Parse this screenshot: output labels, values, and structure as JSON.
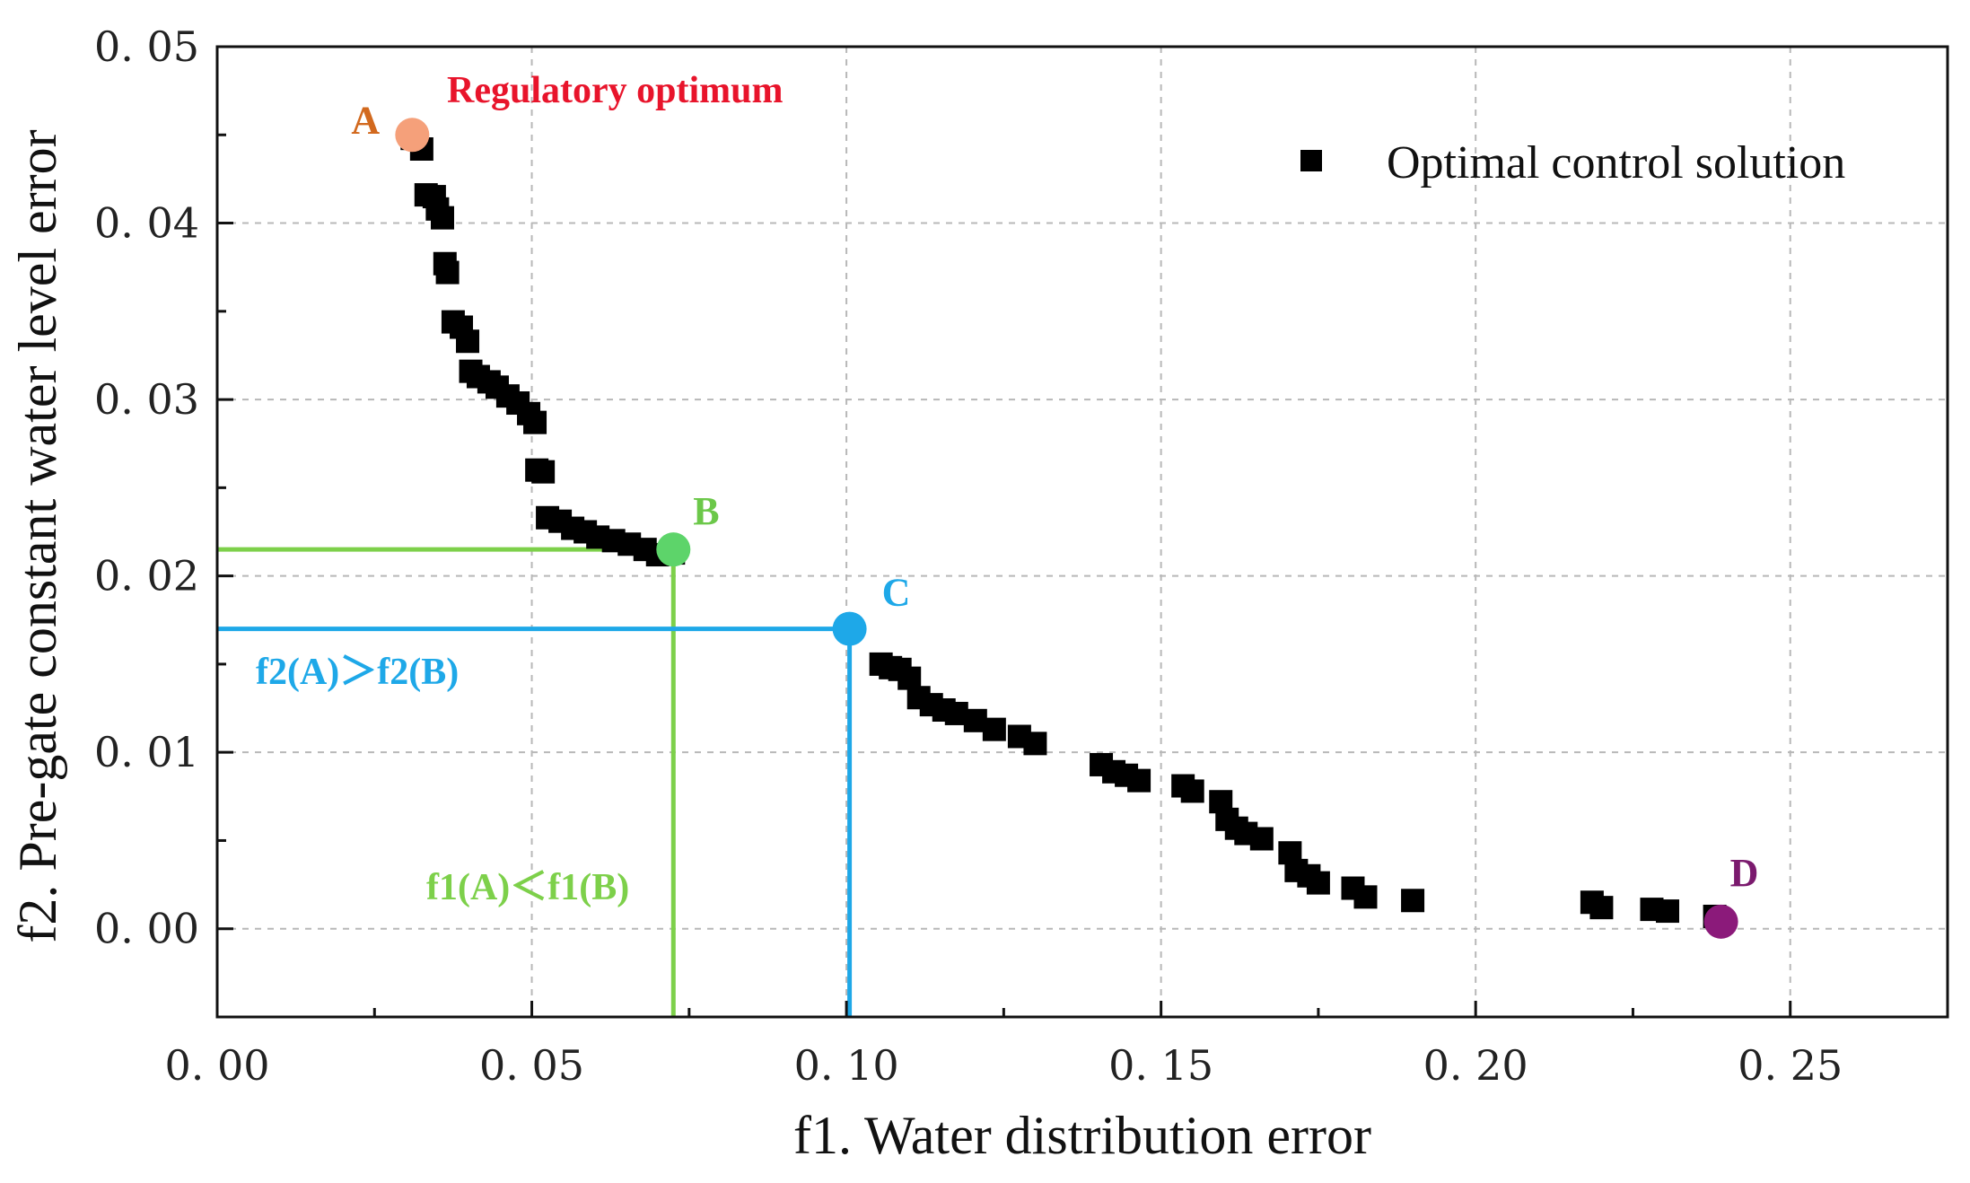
{
  "chart_data": {
    "type": "scatter",
    "xlabel": "f1. Water distribution error",
    "ylabel": "f2. Pre-gate constant water level error",
    "xlim": [
      0.0,
      0.275
    ],
    "ylim": [
      -0.005,
      0.05
    ],
    "x_ticks": [
      0.0,
      0.05,
      0.1,
      0.15,
      0.2,
      0.25
    ],
    "x_tick_labels": [
      "0. 00",
      "0. 05",
      "0. 10",
      "0. 15",
      "0. 20",
      "0. 25"
    ],
    "y_ticks": [
      0.0,
      0.01,
      0.02,
      0.03,
      0.04,
      0.05
    ],
    "y_tick_labels": [
      "0. 00",
      "0. 01",
      "0. 02",
      "0. 03",
      "0. 04",
      "0. 05"
    ],
    "grid": true,
    "legend": {
      "position": "top-right",
      "entries": [
        "Optimal control solution"
      ]
    },
    "series": [
      {
        "name": "Optimal control solution",
        "marker": "square",
        "color": "#000000",
        "points": [
          [
            0.031,
            0.0448
          ],
          [
            0.0325,
            0.0442
          ],
          [
            0.0332,
            0.0416
          ],
          [
            0.0345,
            0.0415
          ],
          [
            0.035,
            0.0408
          ],
          [
            0.0358,
            0.0403
          ],
          [
            0.0362,
            0.0377
          ],
          [
            0.0366,
            0.0372
          ],
          [
            0.0375,
            0.0344
          ],
          [
            0.0388,
            0.0341
          ],
          [
            0.0398,
            0.0333
          ],
          [
            0.0403,
            0.0316
          ],
          [
            0.0415,
            0.0313
          ],
          [
            0.0432,
            0.031
          ],
          [
            0.0445,
            0.0307
          ],
          [
            0.0462,
            0.0302
          ],
          [
            0.0478,
            0.0298
          ],
          [
            0.0495,
            0.0292
          ],
          [
            0.0505,
            0.0287
          ],
          [
            0.0508,
            0.026
          ],
          [
            0.0518,
            0.0259
          ],
          [
            0.0525,
            0.0233
          ],
          [
            0.0545,
            0.0231
          ],
          [
            0.0565,
            0.0227
          ],
          [
            0.0585,
            0.0225
          ],
          [
            0.0605,
            0.0222
          ],
          [
            0.063,
            0.022
          ],
          [
            0.0655,
            0.0218
          ],
          [
            0.068,
            0.0215
          ],
          [
            0.07,
            0.0212
          ],
          [
            0.0725,
            0.0213
          ],
          [
            0.1055,
            0.015
          ],
          [
            0.107,
            0.0148
          ],
          [
            0.1085,
            0.0147
          ],
          [
            0.11,
            0.0142
          ],
          [
            0.1115,
            0.0131
          ],
          [
            0.1135,
            0.0127
          ],
          [
            0.1155,
            0.0124
          ],
          [
            0.1175,
            0.0122
          ],
          [
            0.1205,
            0.0118
          ],
          [
            0.1235,
            0.0113
          ],
          [
            0.1275,
            0.0109
          ],
          [
            0.13,
            0.0105
          ],
          [
            0.1405,
            0.0093
          ],
          [
            0.1425,
            0.0089
          ],
          [
            0.1445,
            0.0087
          ],
          [
            0.1465,
            0.0084
          ],
          [
            0.1535,
            0.0081
          ],
          [
            0.155,
            0.0078
          ],
          [
            0.1595,
            0.0072
          ],
          [
            0.1605,
            0.0062
          ],
          [
            0.162,
            0.0057
          ],
          [
            0.1635,
            0.0054
          ],
          [
            0.166,
            0.0051
          ],
          [
            0.1705,
            0.0043
          ],
          [
            0.1715,
            0.0033
          ],
          [
            0.1735,
            0.003
          ],
          [
            0.175,
            0.0026
          ],
          [
            0.1805,
            0.0023
          ],
          [
            0.1825,
            0.0018
          ],
          [
            0.19,
            0.0016
          ],
          [
            0.2185,
            0.0015
          ],
          [
            0.22,
            0.0012
          ],
          [
            0.228,
            0.0011
          ],
          [
            0.2305,
            0.001
          ],
          [
            0.238,
            0.0007
          ]
        ]
      }
    ],
    "highlight_points": [
      {
        "label": "A",
        "x": 0.031,
        "y": 0.045,
        "color": "#F5A07A",
        "label_color": "#D2691E"
      },
      {
        "label": "B",
        "x": 0.0725,
        "y": 0.0215,
        "color": "#5DD46A",
        "label_color": "#6CC84A"
      },
      {
        "label": "C",
        "x": 0.1005,
        "y": 0.017,
        "color": "#1EA8E8",
        "label_color": "#1EA8E8"
      },
      {
        "label": "D",
        "x": 0.239,
        "y": 0.0004,
        "color": "#8B1A7A",
        "label_color": "#7B1A6E"
      }
    ],
    "reference_lines": [
      {
        "from": "B",
        "color": "#7DD04A"
      },
      {
        "from": "C",
        "color": "#1EA8E8"
      }
    ],
    "annotations": [
      {
        "text": "Regulatory optimum",
        "color": "#E8142B",
        "near": "A"
      },
      {
        "text": "f2(A)＞f2(B)",
        "color": "#1EA8E8",
        "near": "y-axis"
      },
      {
        "text": "f1(A)＜f1(B)",
        "color": "#7DD04A",
        "near": "x-axis"
      }
    ]
  }
}
